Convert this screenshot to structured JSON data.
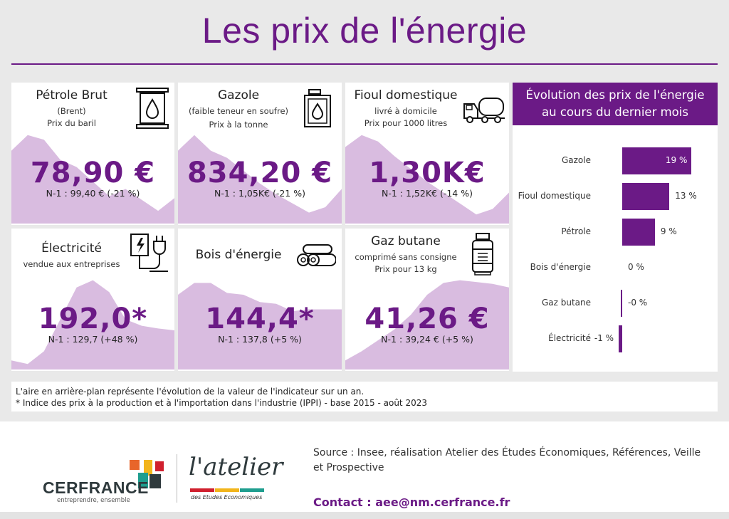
{
  "page": {
    "title": "Les prix de l'énergie"
  },
  "cards": {
    "petrole": {
      "title": "Pétrole Brut",
      "sub1": "(Brent)",
      "sub2": "Prix du baril",
      "value": "78,90 €",
      "prev": "N-1 : 99,40 € (-21 %)",
      "icon": "oil-barrel-icon",
      "trend": [
        80,
        97,
        92,
        70,
        62,
        46,
        30,
        38,
        26,
        14,
        28
      ]
    },
    "gazole": {
      "title": "Gazole",
      "sub1": "(faible teneur en soufre)",
      "sub2": "Prix à la tonne",
      "value": "834,20 €",
      "prev": "N-1 : 1,05K€ (-21 %)",
      "icon": "fuel-jerrycan-icon",
      "trend": [
        80,
        97,
        80,
        72,
        58,
        44,
        32,
        22,
        12,
        18,
        38
      ]
    },
    "fioul": {
      "title": "Fioul domestique",
      "sub1": "livré à domicile",
      "sub2": "Prix pour 1000 litres",
      "value": "1,30K€",
      "prev": "N-1 : 1,52K€ (-14 %)",
      "icon": "tanker-truck-icon",
      "trend": [
        84,
        97,
        90,
        74,
        60,
        46,
        34,
        22,
        10,
        16,
        34
      ]
    },
    "electricite": {
      "title": "Électricité",
      "sub1": "vendue aux entreprises",
      "value": "192,0*",
      "prev": "N-1 : 129,7 (+48 %)",
      "icon": "plug-electricity-icon",
      "trend": [
        10,
        6,
        20,
        55,
        90,
        98,
        85,
        55,
        48,
        45,
        43
      ]
    },
    "bois": {
      "title": "Bois d'énergie",
      "value": "144,4*",
      "prev": "N-1 : 137,8 (+5 %)",
      "icon": "wood-logs-icon",
      "trend": [
        82,
        95,
        95,
        84,
        82,
        74,
        72,
        64,
        66,
        66,
        66
      ]
    },
    "gaz": {
      "title": "Gaz butane",
      "sub1": "comprimé sans consigne",
      "sub2": "Prix pour 13 kg",
      "value": "41,26 €",
      "prev": "N-1 : 39,24 € (+5 %)",
      "icon": "gas-cylinder-icon",
      "trend": [
        10,
        20,
        32,
        44,
        60,
        82,
        95,
        98,
        96,
        94,
        90
      ]
    }
  },
  "panel": {
    "title_line1": "Évolution des prix de l'énergie",
    "title_line2": "au cours du dernier mois",
    "accent": "#6b1a86",
    "items": [
      {
        "label": "Gazole",
        "value": 19,
        "text": "19 %"
      },
      {
        "label": "Fioul domestique",
        "value": 13,
        "text": "13 %"
      },
      {
        "label": "Pétrole",
        "value": 9,
        "text": "9 %"
      },
      {
        "label": "Bois d'énergie",
        "value": 0,
        "text": "0 %"
      },
      {
        "label": "Gaz butane",
        "value": -0.2,
        "text": "-0 %"
      },
      {
        "label": "Électricité",
        "value": -1,
        "text": "-1 %"
      }
    ]
  },
  "notes": {
    "line1": "L'aire en arrière-plan représente l'évolution de la valeur de l'indicateur sur un an.",
    "line2": " * Indice des prix à la production et à l'importation dans l'industrie (IPPI) - base 2015 - août 2023"
  },
  "footer": {
    "source": "Source : Insee, réalisation Atelier des Études Économiques, Références, Veille et Prospective",
    "contact": "Contact : aee@nm.cerfrance.fr",
    "brand": "CERFRANCE",
    "brand_tagline": "entreprendre, ensemble",
    "atelier": "l'atelier",
    "atelier_sub": "des Etudes Economiques"
  }
}
